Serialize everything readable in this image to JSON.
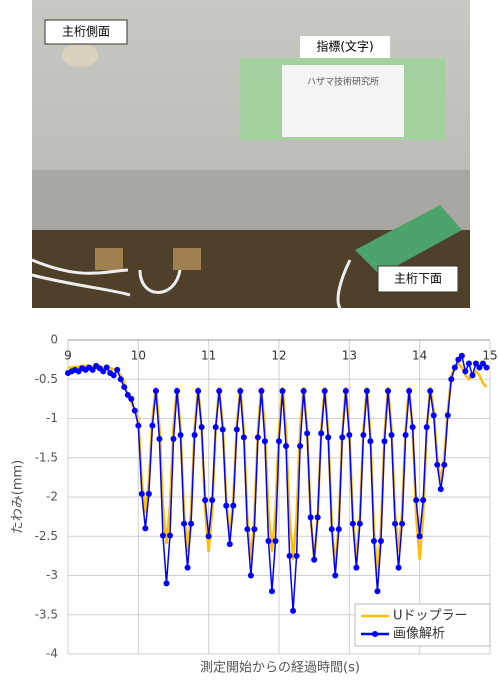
{
  "photo": {
    "labels": [
      "主桁側面",
      "指標(文字)",
      "主桁下面"
    ],
    "sign": "ハザマ技術研究所"
  },
  "chart_data": {
    "type": "line",
    "x_label": "測定開始からの経過時間(s)",
    "y_label": "たわみ(mm)",
    "xlim": [
      9,
      15
    ],
    "xticks": [
      9,
      10,
      11,
      12,
      13,
      14,
      15
    ],
    "ylim": [
      -4,
      0
    ],
    "yticks": [
      0,
      -0.5,
      -1,
      -1.5,
      -2,
      -2.5,
      -3,
      -3.5,
      -4
    ],
    "grid": true,
    "legend": "bottom-right",
    "x": [
      9,
      9.05,
      9.1,
      9.15,
      9.2,
      9.25,
      9.3,
      9.35,
      9.4,
      9.45,
      9.5,
      9.55,
      9.6,
      9.65,
      9.7,
      9.75,
      9.8,
      9.85,
      9.9,
      9.95,
      10,
      10.05,
      10.1,
      10.15,
      10.2,
      10.25,
      10.3,
      10.35,
      10.4,
      10.45,
      10.5,
      10.55,
      10.6,
      10.65,
      10.7,
      10.75,
      10.8,
      10.85,
      10.9,
      10.95,
      11,
      11.05,
      11.1,
      11.15,
      11.2,
      11.25,
      11.3,
      11.35,
      11.4,
      11.45,
      11.5,
      11.55,
      11.6,
      11.65,
      11.7,
      11.75,
      11.8,
      11.85,
      11.9,
      11.95,
      12,
      12.05,
      12.1,
      12.15,
      12.2,
      12.25,
      12.3,
      12.35,
      12.4,
      12.45,
      12.5,
      12.55,
      12.6,
      12.65,
      12.7,
      12.75,
      12.8,
      12.85,
      12.9,
      12.95,
      13,
      13.05,
      13.1,
      13.15,
      13.2,
      13.25,
      13.3,
      13.35,
      13.4,
      13.45,
      13.5,
      13.55,
      13.6,
      13.65,
      13.7,
      13.75,
      13.8,
      13.85,
      13.9,
      13.95,
      14,
      14.05,
      14.1,
      14.15,
      14.2,
      14.25,
      14.3,
      14.35,
      14.4,
      14.45,
      14.5,
      14.55,
      14.6,
      14.65,
      14.7,
      14.75,
      14.8,
      14.85,
      14.9,
      14.95
    ],
    "series": [
      {
        "name": "Uドップラー",
        "color": "#ffc000",
        "markers": false,
        "values": [
          -0.35,
          -0.35,
          -0.34,
          -0.34,
          -0.33,
          -0.33,
          -0.33,
          -0.34,
          -0.34,
          -0.35,
          -0.35,
          -0.36,
          -0.36,
          -0.37,
          -0.4,
          -0.45,
          -0.55,
          -0.7,
          -0.8,
          -0.9,
          -1.0,
          -1.8,
          -2.2,
          -1.8,
          -1.0,
          -0.6,
          -1.1,
          -2.1,
          -2.6,
          -2.1,
          -1.1,
          -0.6,
          -1.13,
          -2.18,
          -2.7,
          -2.18,
          -1.13,
          -0.6,
          -1.13,
          -2.18,
          -2.7,
          -2.18,
          -1.13,
          -0.6,
          -1.08,
          -2.03,
          -2.5,
          -2.03,
          -1.08,
          -0.6,
          -1.15,
          -2.25,
          -2.8,
          -2.25,
          -1.15,
          -0.6,
          -1.13,
          -2.18,
          -2.7,
          -2.18,
          -1.13,
          -0.6,
          -1.15,
          -2.25,
          -2.8,
          -2.25,
          -1.15,
          -0.6,
          -1.15,
          -2.25,
          -2.8,
          -2.25,
          -1.15,
          -0.6,
          -1.18,
          -2.33,
          -2.9,
          -2.33,
          -1.18,
          -0.6,
          -1.15,
          -2.25,
          -2.8,
          -2.25,
          -1.15,
          -0.6,
          -1.2,
          -2.4,
          -3.0,
          -2.4,
          -1.2,
          -0.6,
          -1.13,
          -2.18,
          -2.7,
          -2.18,
          -1.13,
          -0.6,
          -1.15,
          -2.25,
          -2.8,
          -2.25,
          -1.15,
          -0.6,
          -0.9,
          -1.5,
          -1.8,
          -1.5,
          -0.9,
          -0.45,
          -0.35,
          -0.3,
          -0.35,
          -0.45,
          -0.5,
          -0.45,
          -0.4,
          -0.45,
          -0.55,
          -0.6
        ]
      },
      {
        "name": "画像解析",
        "color": "#0000ff",
        "markers": true,
        "values": [
          -0.42,
          -0.4,
          -0.38,
          -0.4,
          -0.36,
          -0.38,
          -0.35,
          -0.38,
          -0.33,
          -0.36,
          -0.4,
          -0.35,
          -0.42,
          -0.45,
          -0.38,
          -0.5,
          -0.6,
          -0.7,
          -0.75,
          -0.9,
          -1.09,
          -1.96,
          -2.4,
          -1.96,
          -1.09,
          -0.65,
          -1.26,
          -2.49,
          -3.1,
          -2.49,
          -1.26,
          -0.65,
          -1.21,
          -2.34,
          -2.9,
          -2.34,
          -1.21,
          -0.65,
          -1.11,
          -2.04,
          -2.5,
          -2.04,
          -1.11,
          -0.65,
          -1.14,
          -2.11,
          -2.6,
          -2.11,
          -1.14,
          -0.65,
          -1.24,
          -2.41,
          -3.0,
          -2.41,
          -1.24,
          -0.65,
          -1.29,
          -2.56,
          -3.2,
          -2.56,
          -1.29,
          -0.65,
          -1.35,
          -2.75,
          -3.45,
          -2.75,
          -1.35,
          -0.65,
          -1.19,
          -2.26,
          -2.8,
          -2.26,
          -1.19,
          -0.65,
          -1.24,
          -2.41,
          -3.0,
          -2.41,
          -1.24,
          -0.65,
          -1.21,
          -2.34,
          -2.9,
          -2.34,
          -1.21,
          -0.65,
          -1.29,
          -2.56,
          -3.2,
          -2.56,
          -1.29,
          -0.65,
          -1.21,
          -2.34,
          -2.9,
          -2.34,
          -1.21,
          -0.65,
          -1.11,
          -2.04,
          -2.5,
          -2.04,
          -1.11,
          -0.65,
          -0.96,
          -1.59,
          -1.9,
          -1.59,
          -0.96,
          -0.5,
          -0.35,
          -0.25,
          -0.2,
          -0.4,
          -0.3,
          -0.45,
          -0.3,
          -0.35,
          -0.3,
          -0.35
        ]
      }
    ]
  }
}
